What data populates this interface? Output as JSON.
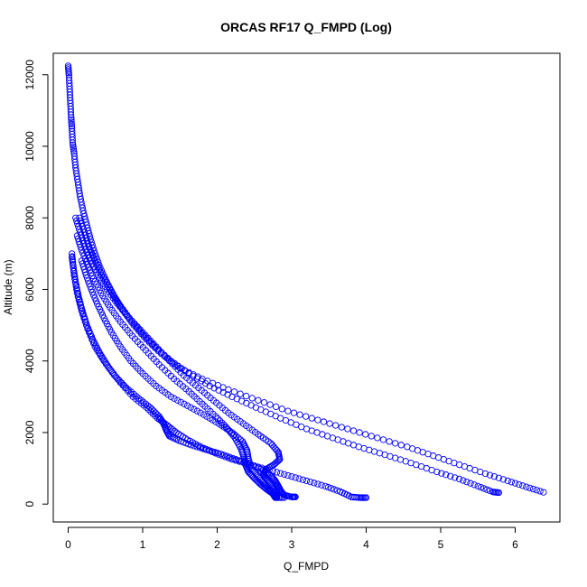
{
  "chart_data": {
    "type": "scatter",
    "title": "ORCAS RF17 Q_FMPD (Log)",
    "xlabel": "Q_FMPD",
    "ylabel": "Altitude (m)",
    "xlim": [
      -0.2,
      6.6
    ],
    "ylim": [
      -500,
      12600
    ],
    "x_ticks": [
      0,
      1,
      2,
      3,
      4,
      5,
      6
    ],
    "y_ticks": [
      0,
      2000,
      4000,
      6000,
      8000,
      10000,
      12000
    ],
    "marker": "open-circle",
    "color": "#0000ff",
    "grid": false,
    "legend": "none",
    "series": [
      {
        "values": [
          [
            0.0,
            12250
          ],
          [
            0.01,
            12000
          ],
          [
            0.02,
            11600
          ],
          [
            0.03,
            11200
          ],
          [
            0.04,
            10800
          ],
          [
            0.05,
            10500
          ],
          [
            0.06,
            10100
          ],
          [
            0.08,
            9800
          ],
          [
            0.1,
            9400
          ],
          [
            0.13,
            9000
          ],
          [
            0.16,
            8600
          ],
          [
            0.2,
            8200
          ],
          [
            0.25,
            7800
          ],
          [
            0.3,
            7400
          ],
          [
            0.36,
            7000
          ],
          [
            0.43,
            6600
          ],
          [
            0.52,
            6200
          ],
          [
            0.62,
            5800
          ],
          [
            0.74,
            5400
          ],
          [
            0.88,
            5000
          ],
          [
            1.05,
            4600
          ],
          [
            1.25,
            4200
          ],
          [
            1.5,
            3800
          ],
          [
            1.8,
            3500
          ],
          [
            2.15,
            3200
          ],
          [
            2.55,
            2900
          ],
          [
            2.95,
            2600
          ],
          [
            3.35,
            2350
          ],
          [
            3.75,
            2100
          ],
          [
            4.15,
            1850
          ],
          [
            4.55,
            1600
          ],
          [
            4.9,
            1350
          ],
          [
            5.25,
            1100
          ],
          [
            5.6,
            850
          ],
          [
            5.9,
            650
          ],
          [
            6.15,
            480
          ],
          [
            6.38,
            330
          ]
        ]
      },
      {
        "values": [
          [
            0.15,
            8000
          ],
          [
            0.22,
            7600
          ],
          [
            0.28,
            7200
          ],
          [
            0.36,
            6800
          ],
          [
            0.45,
            6400
          ],
          [
            0.56,
            6000
          ],
          [
            0.68,
            5600
          ],
          [
            0.82,
            5200
          ],
          [
            0.98,
            4800
          ],
          [
            1.16,
            4400
          ],
          [
            1.38,
            4000
          ],
          [
            1.62,
            3650
          ],
          [
            1.9,
            3300
          ],
          [
            2.2,
            3000
          ],
          [
            2.52,
            2700
          ],
          [
            2.85,
            2400
          ],
          [
            3.2,
            2100
          ],
          [
            3.55,
            1850
          ],
          [
            3.9,
            1600
          ],
          [
            4.25,
            1380
          ],
          [
            4.6,
            1150
          ],
          [
            4.95,
            900
          ],
          [
            5.25,
            700
          ],
          [
            5.5,
            500
          ],
          [
            5.7,
            340
          ],
          [
            5.78,
            320
          ]
        ]
      },
      {
        "values": [
          [
            0.05,
            7000
          ],
          [
            0.07,
            6600
          ],
          [
            0.1,
            6200
          ],
          [
            0.14,
            5800
          ],
          [
            0.19,
            5400
          ],
          [
            0.25,
            5000
          ],
          [
            0.33,
            4600
          ],
          [
            0.43,
            4200
          ],
          [
            0.55,
            3800
          ],
          [
            0.7,
            3400
          ],
          [
            0.87,
            3000
          ],
          [
            1.05,
            2700
          ],
          [
            1.2,
            2400
          ],
          [
            1.33,
            2200
          ],
          [
            1.45,
            2000
          ],
          [
            1.6,
            1800
          ],
          [
            1.78,
            1600
          ],
          [
            1.98,
            1420
          ],
          [
            2.2,
            1250
          ],
          [
            2.45,
            1100
          ],
          [
            2.7,
            950
          ],
          [
            2.95,
            800
          ],
          [
            3.2,
            650
          ],
          [
            3.45,
            500
          ],
          [
            3.65,
            350
          ],
          [
            3.8,
            200
          ],
          [
            3.92,
            180
          ],
          [
            4.0,
            180
          ]
        ]
      },
      {
        "values": [
          [
            0.05,
            6900
          ],
          [
            0.08,
            6400
          ],
          [
            0.12,
            5900
          ],
          [
            0.18,
            5400
          ],
          [
            0.26,
            4900
          ],
          [
            0.36,
            4400
          ],
          [
            0.48,
            4000
          ],
          [
            0.62,
            3600
          ],
          [
            0.78,
            3250
          ],
          [
            0.95,
            2950
          ],
          [
            1.1,
            2700
          ],
          [
            1.22,
            2450
          ],
          [
            1.28,
            2250
          ],
          [
            1.32,
            2050
          ],
          [
            1.36,
            1900
          ],
          [
            1.48,
            1780
          ],
          [
            1.65,
            1650
          ],
          [
            1.85,
            1520
          ],
          [
            2.05,
            1400
          ],
          [
            2.25,
            1250
          ],
          [
            2.45,
            1100
          ],
          [
            2.62,
            950
          ],
          [
            2.72,
            800
          ],
          [
            2.78,
            650
          ],
          [
            2.82,
            500
          ],
          [
            2.86,
            350
          ],
          [
            2.9,
            250
          ],
          [
            3.0,
            200
          ],
          [
            3.05,
            200
          ]
        ]
      },
      {
        "values": [
          [
            0.18,
            6800
          ],
          [
            0.24,
            6400
          ],
          [
            0.31,
            6000
          ],
          [
            0.39,
            5600
          ],
          [
            0.48,
            5200
          ],
          [
            0.58,
            4800
          ],
          [
            0.7,
            4400
          ],
          [
            0.84,
            4000
          ],
          [
            1.0,
            3650
          ],
          [
            1.18,
            3300
          ],
          [
            1.38,
            3000
          ],
          [
            1.6,
            2750
          ],
          [
            1.82,
            2500
          ],
          [
            2.02,
            2250
          ],
          [
            2.2,
            2000
          ],
          [
            2.34,
            1750
          ],
          [
            2.4,
            1500
          ],
          [
            2.42,
            1250
          ],
          [
            2.46,
            1000
          ],
          [
            2.54,
            800
          ],
          [
            2.62,
            600
          ],
          [
            2.7,
            420
          ],
          [
            2.75,
            280
          ],
          [
            2.78,
            180
          ],
          [
            2.9,
            180
          ]
        ]
      },
      {
        "values": [
          [
            0.1,
            8000
          ],
          [
            0.16,
            7600
          ],
          [
            0.22,
            7200
          ],
          [
            0.3,
            6800
          ],
          [
            0.4,
            6400
          ],
          [
            0.52,
            6000
          ],
          [
            0.66,
            5600
          ],
          [
            0.82,
            5200
          ],
          [
            1.0,
            4800
          ],
          [
            1.18,
            4400
          ],
          [
            1.36,
            4000
          ],
          [
            1.55,
            3600
          ],
          [
            1.75,
            3250
          ],
          [
            1.95,
            2900
          ],
          [
            2.15,
            2550
          ],
          [
            2.35,
            2250
          ],
          [
            2.55,
            1950
          ],
          [
            2.72,
            1700
          ],
          [
            2.82,
            1450
          ],
          [
            2.84,
            1250
          ],
          [
            2.76,
            1100
          ],
          [
            2.66,
            980
          ],
          [
            2.62,
            850
          ],
          [
            2.66,
            700
          ],
          [
            2.72,
            550
          ],
          [
            2.76,
            380
          ],
          [
            2.78,
            220
          ],
          [
            2.8,
            180
          ]
        ]
      },
      {
        "values": [
          [
            0.12,
            7500
          ],
          [
            0.18,
            7100
          ],
          [
            0.26,
            6700
          ],
          [
            0.34,
            6300
          ],
          [
            0.44,
            5900
          ],
          [
            0.56,
            5500
          ],
          [
            0.7,
            5100
          ],
          [
            0.86,
            4700
          ],
          [
            1.04,
            4300
          ],
          [
            1.22,
            3900
          ],
          [
            1.42,
            3500
          ],
          [
            1.62,
            3150
          ],
          [
            1.8,
            2800
          ],
          [
            1.98,
            2450
          ],
          [
            2.12,
            2150
          ],
          [
            2.24,
            1850
          ],
          [
            2.32,
            1550
          ],
          [
            2.36,
            1300
          ],
          [
            2.38,
            1100
          ],
          [
            2.42,
            900
          ],
          [
            2.5,
            720
          ],
          [
            2.58,
            560
          ],
          [
            2.66,
            420
          ],
          [
            2.74,
            300
          ],
          [
            2.8,
            250
          ]
        ]
      }
    ]
  }
}
